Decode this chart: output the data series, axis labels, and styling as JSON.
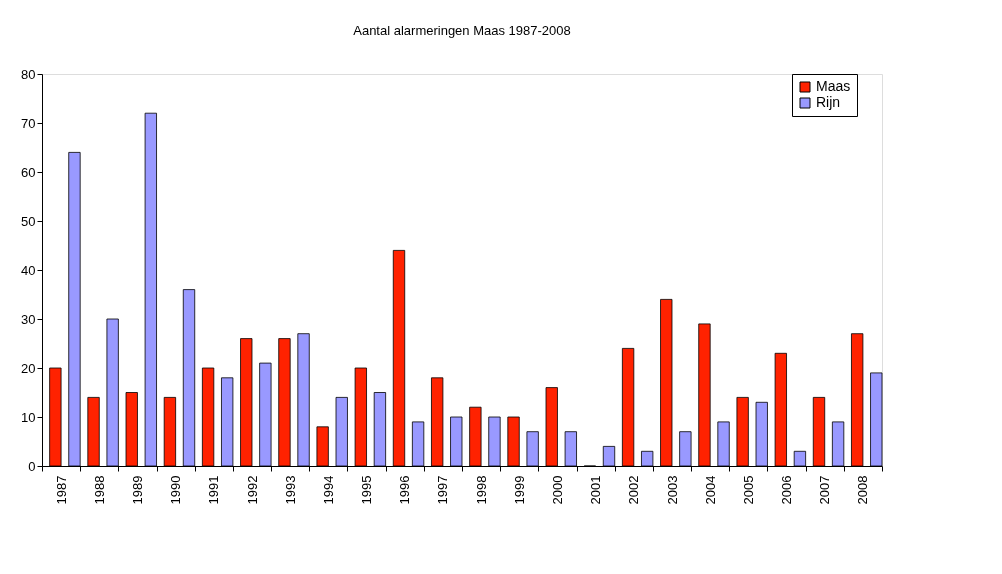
{
  "chart_data": {
    "type": "bar",
    "title": "Aantal alarmeringen Maas 1987-2008",
    "categories": [
      "1987",
      "1988",
      "1989",
      "1990",
      "1991",
      "1992",
      "1993",
      "1994",
      "1995",
      "1996",
      "1997",
      "1998",
      "1999",
      "2000",
      "2001",
      "2002",
      "2003",
      "2004",
      "2005",
      "2006",
      "2007",
      "2008"
    ],
    "series": [
      {
        "name": "Maas",
        "color": "#ff2200",
        "values": [
          20,
          14,
          15,
          14,
          20,
          26,
          26,
          8,
          20,
          44,
          18,
          12,
          10,
          16,
          0,
          24,
          34,
          29,
          14,
          23,
          14,
          27
        ]
      },
      {
        "name": "Rijn",
        "color": "#9999ff",
        "values": [
          64,
          30,
          72,
          36,
          18,
          21,
          27,
          14,
          15,
          9,
          10,
          10,
          7,
          7,
          4,
          3,
          7,
          9,
          13,
          3,
          9,
          19
        ]
      }
    ],
    "ylim": [
      0,
      80
    ],
    "yticks": [
      0,
      10,
      20,
      30,
      40,
      50,
      60,
      70,
      80
    ],
    "grid": false,
    "legend": "right"
  }
}
